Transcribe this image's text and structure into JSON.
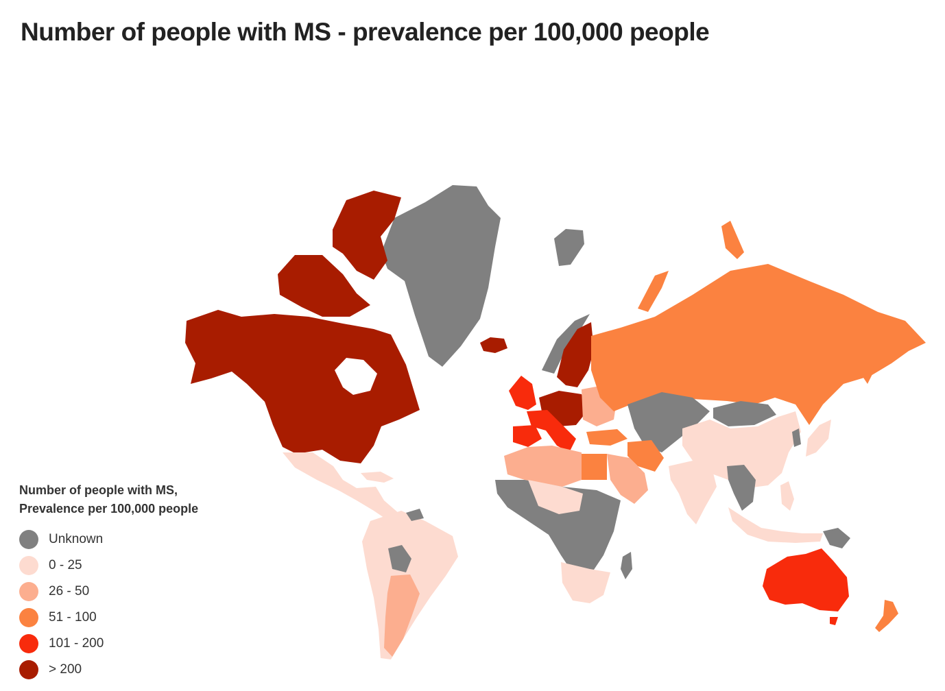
{
  "title": "Number of people with MS - prevalence per 100,000 people",
  "legend": {
    "title_line1": "Number of people with MS,",
    "title_line2": "Prevalence per 100,000 people",
    "items": [
      {
        "label": "Unknown",
        "color": "#808080"
      },
      {
        "label": "0 - 25",
        "color": "#fddbd0"
      },
      {
        "label": "26 - 50",
        "color": "#fcae8f"
      },
      {
        "label": "51 - 100",
        "color": "#fb8240"
      },
      {
        "label": "101 - 200",
        "color": "#f82b0c"
      },
      {
        "label": "> 200",
        "color": "#a81c00"
      }
    ]
  }
}
